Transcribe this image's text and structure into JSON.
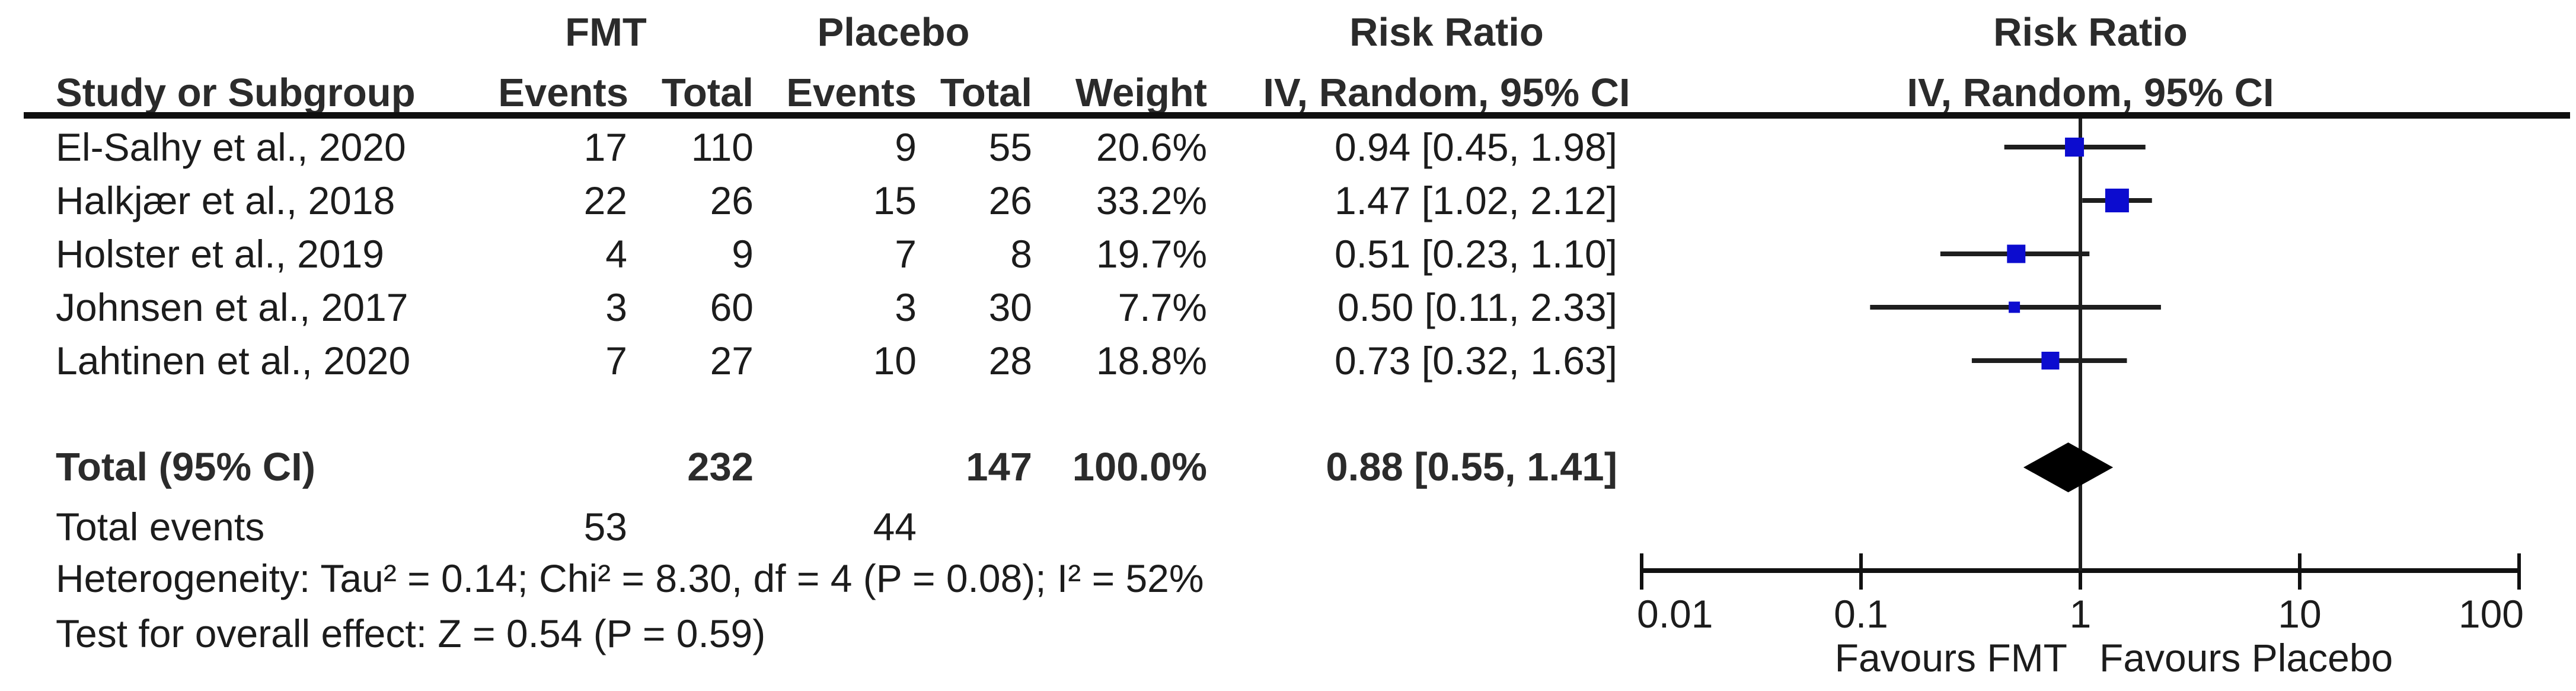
{
  "figure": {
    "headers": {
      "study": "Study or Subgroup",
      "fmt_group": "FMT",
      "placebo_group": "Placebo",
      "fmt_events": "Events",
      "fmt_total": "Total",
      "placebo_events": "Events",
      "placebo_total": "Total",
      "weight": "Weight",
      "risk_ratio_left": "Risk Ratio",
      "method_left": "IV, Random, 95% CI",
      "risk_ratio_right": "Risk Ratio",
      "method_right": "IV, Random, 95% CI"
    },
    "rows": [
      {
        "study": "El-Salhy et al., 2020",
        "fmt_events": "17",
        "fmt_total": "110",
        "placebo_events": "9",
        "placebo_total": "55",
        "weight": "20.6%",
        "rr_text": "0.94 [0.45, 1.98]"
      },
      {
        "study": "Halkjær et al., 2018",
        "fmt_events": "22",
        "fmt_total": "26",
        "placebo_events": "15",
        "placebo_total": "26",
        "weight": "33.2%",
        "rr_text": "1.47 [1.02, 2.12]"
      },
      {
        "study": "Holster et al., 2019",
        "fmt_events": "4",
        "fmt_total": "9",
        "placebo_events": "7",
        "placebo_total": "8",
        "weight": "19.7%",
        "rr_text": "0.51 [0.23, 1.10]"
      },
      {
        "study": "Johnsen et al., 2017",
        "fmt_events": "3",
        "fmt_total": "60",
        "placebo_events": "3",
        "placebo_total": "30",
        "weight": "7.7%",
        "rr_text": "0.50 [0.11, 2.33]"
      },
      {
        "study": "Lahtinen et al., 2020",
        "fmt_events": "7",
        "fmt_total": "27",
        "placebo_events": "10",
        "placebo_total": "28",
        "weight": "18.8%",
        "rr_text": "0.73 [0.32, 1.63]"
      }
    ],
    "total_row": {
      "label": "Total (95% CI)",
      "fmt_total": "232",
      "placebo_total": "147",
      "weight": "100.0%",
      "rr_text": "0.88 [0.55, 1.41]"
    },
    "total_events_row": {
      "label": "Total events",
      "fmt_events": "53",
      "placebo_events": "44"
    },
    "heterogeneity_line": "Heterogeneity: Tau² = 0.14; Chi² = 8.30, df = 4 (P = 0.08); I² = 52%",
    "overall_effect_line": "Test for overall effect: Z = 0.54 (P = 0.59)"
  },
  "chart_data": {
    "type": "forest",
    "title": "Risk Ratio IV, Random, 95% CI",
    "x_scale": "log10",
    "xlim": [
      0.01,
      100
    ],
    "axis_ticks": [
      0.01,
      0.1,
      1,
      10,
      100
    ],
    "axis_tick_labels": [
      "0.01",
      "0.1",
      "1",
      "10",
      "100"
    ],
    "no_effect_value": 1,
    "favours_left_label": "Favours FMT",
    "favours_right_label": "Favours Placebo",
    "studies": [
      {
        "name": "El-Salhy et al., 2020",
        "rr": 0.94,
        "ci_low": 0.45,
        "ci_high": 1.98,
        "weight_pct": 20.6
      },
      {
        "name": "Halkjær et al., 2018",
        "rr": 1.47,
        "ci_low": 1.02,
        "ci_high": 2.12,
        "weight_pct": 33.2
      },
      {
        "name": "Holster et al., 2019",
        "rr": 0.51,
        "ci_low": 0.23,
        "ci_high": 1.1,
        "weight_pct": 19.7
      },
      {
        "name": "Johnsen et al., 2017",
        "rr": 0.5,
        "ci_low": 0.11,
        "ci_high": 2.33,
        "weight_pct": 7.7
      },
      {
        "name": "Lahtinen et al., 2020",
        "rr": 0.73,
        "ci_low": 0.32,
        "ci_high": 1.63,
        "weight_pct": 18.8
      }
    ],
    "summary": {
      "label": "Total (95% CI)",
      "rr": 0.88,
      "ci_low": 0.55,
      "ci_high": 1.41,
      "weight_pct": 100.0
    },
    "colors": {
      "square": "#0c0ccf",
      "diamond": "#000000",
      "ci_line": "#1e1e1e",
      "axis_line": "#111111",
      "text": "#1c1c1c"
    }
  }
}
